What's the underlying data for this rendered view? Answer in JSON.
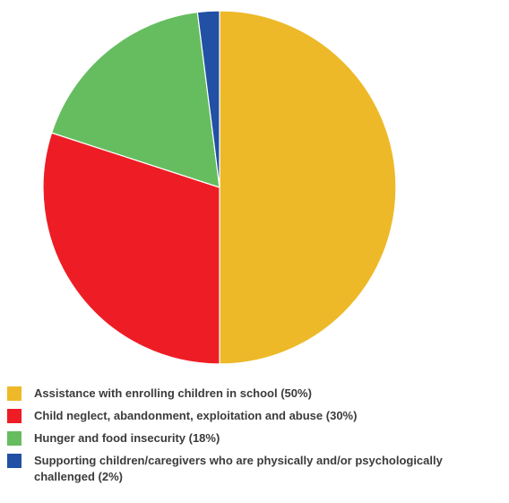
{
  "chart_data": {
    "type": "pie",
    "title": "",
    "start_angle_deg": 0,
    "direction": "clockwise",
    "slices": [
      {
        "label": "Assistance with enrolling children in school (50%)",
        "value": 50,
        "color": "#EDB928"
      },
      {
        "label": "Child neglect, abandonment, exploitation and abuse (30%)",
        "value": 30,
        "color": "#EE1D25"
      },
      {
        "label": "Hunger and food insecurity (18%)",
        "value": 18,
        "color": "#65BD5F"
      },
      {
        "label": "Supporting children/caregivers who are physically and/or psychologically challenged (2%)",
        "value": 2,
        "color": "#2250A4"
      }
    ],
    "legend_position": "bottom"
  }
}
